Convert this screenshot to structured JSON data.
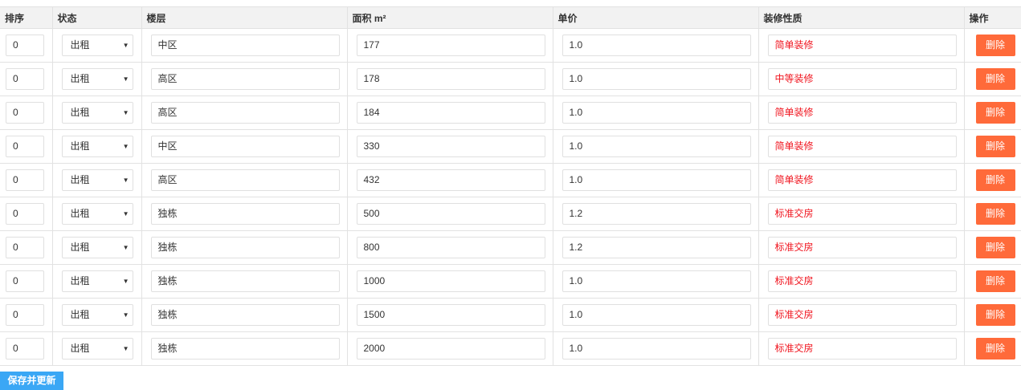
{
  "headers": [
    "排序",
    "状态",
    "楼层",
    "面积 m²",
    "单价",
    "装修性质",
    "操作"
  ],
  "rows": [
    {
      "sort": "0",
      "status": "出租",
      "floor": "中区",
      "area": "177",
      "price": "1.0",
      "decor": "简单装修"
    },
    {
      "sort": "0",
      "status": "出租",
      "floor": "高区",
      "area": "178",
      "price": "1.0",
      "decor": "中等装修"
    },
    {
      "sort": "0",
      "status": "出租",
      "floor": "高区",
      "area": "184",
      "price": "1.0",
      "decor": "简单装修"
    },
    {
      "sort": "0",
      "status": "出租",
      "floor": "中区",
      "area": "330",
      "price": "1.0",
      "decor": "简单装修"
    },
    {
      "sort": "0",
      "status": "出租",
      "floor": "高区",
      "area": "432",
      "price": "1.0",
      "decor": "简单装修"
    },
    {
      "sort": "0",
      "status": "出租",
      "floor": "独栋",
      "area": "500",
      "price": "1.2",
      "decor": "标准交房"
    },
    {
      "sort": "0",
      "status": "出租",
      "floor": "独栋",
      "area": "800",
      "price": "1.2",
      "decor": "标准交房"
    },
    {
      "sort": "0",
      "status": "出租",
      "floor": "独栋",
      "area": "1000",
      "price": "1.0",
      "decor": "标准交房"
    },
    {
      "sort": "0",
      "status": "出租",
      "floor": "独栋",
      "area": "1500",
      "price": "1.0",
      "decor": "标准交房"
    },
    {
      "sort": "0",
      "status": "出租",
      "floor": "独栋",
      "area": "2000",
      "price": "1.0",
      "decor": "标准交房"
    }
  ],
  "delete_label": "删除",
  "save_label": "保存并更新",
  "colors": {
    "delete": "#ff6a3a",
    "save": "#3aa7f5",
    "decor_text": "#f0141e"
  }
}
